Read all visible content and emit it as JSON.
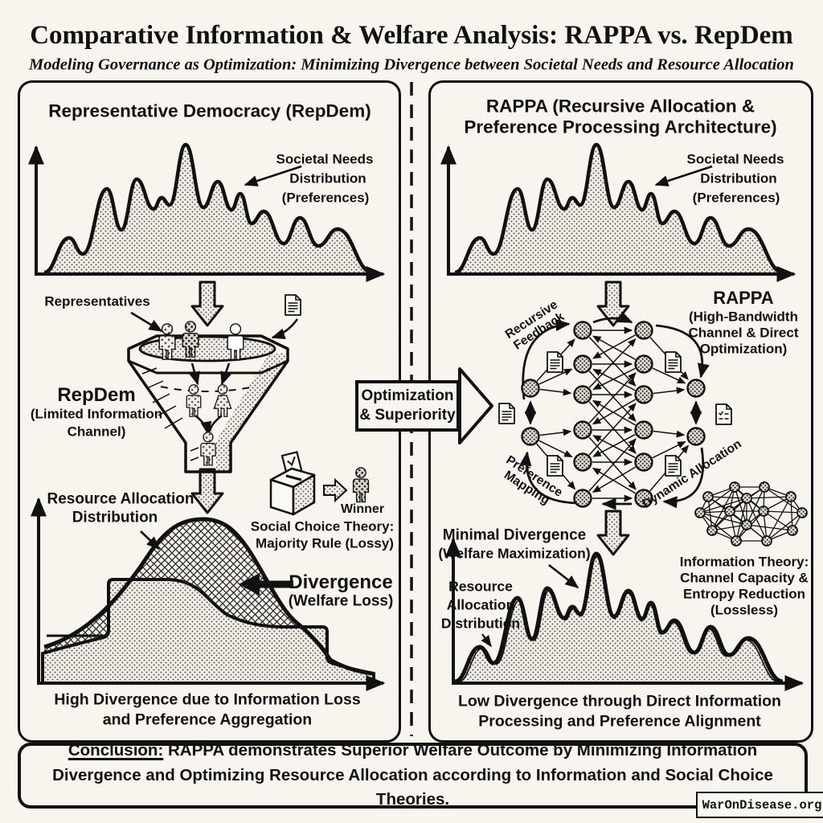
{
  "header": {
    "title": "Comparative Information & Welfare Analysis: RAPPA vs. RepDem",
    "subtitle": "Modeling Governance as Optimization: Minimizing Divergence between Societal Needs and Resource Allocation"
  },
  "left": {
    "title": "Representative Democracy (RepDem)",
    "needs_label": [
      "Societal Needs",
      "Distribution",
      "(Preferences)"
    ],
    "representatives_label": "Representatives",
    "repdem_label": [
      "RepDem",
      "(Limited Information",
      "Channel)"
    ],
    "winner_label": "Winner",
    "social_choice": [
      "Social Choice Theory:",
      "Majority Rule (Lossy)"
    ],
    "resource_label": [
      "Resource Allocation",
      "Distribution"
    ],
    "divergence_label": [
      "Divergence",
      "(Welfare Loss)"
    ],
    "caption": [
      "High Divergence due to Information Loss",
      "and Preference Aggregation"
    ]
  },
  "center": {
    "arrow_label": [
      "Optimization",
      "& Superiority"
    ]
  },
  "right": {
    "title": [
      "RAPPA (Recursive Allocation &",
      "Preference Processing Architecture)"
    ],
    "needs_label": [
      "Societal Needs",
      "Distribution",
      "(Preferences)"
    ],
    "rappa_label": [
      "RAPPA",
      "(High-Bandwidth",
      "Channel & Direct",
      "Optimization)"
    ],
    "recursive_feedback": [
      "Recursive",
      "Feedback"
    ],
    "preference_mapping": [
      "Preference",
      "Mapping"
    ],
    "dynamic_allocation": "Dynamic Allocation",
    "info_theory": [
      "Information Theory:",
      "Channel Capacity &",
      "Entropy Reduction",
      "(Lossless)"
    ],
    "minimal_divergence": [
      "Minimal Divergence",
      "(Welfare Maximization)"
    ],
    "resource_label": [
      "Resource",
      "Allocation",
      "Distribution"
    ],
    "caption": [
      "Low Divergence through Direct Information",
      "Processing and Preference Alignment"
    ]
  },
  "conclusion": {
    "label": "Conclusion:",
    "text": " RAPPA demonstrates Superior Welfare Outcome by Minimizing Information Divergence and Optimizing Resource Allocation according to Information and Social Choice Theories."
  },
  "watermark": "WarOnDisease.org"
}
